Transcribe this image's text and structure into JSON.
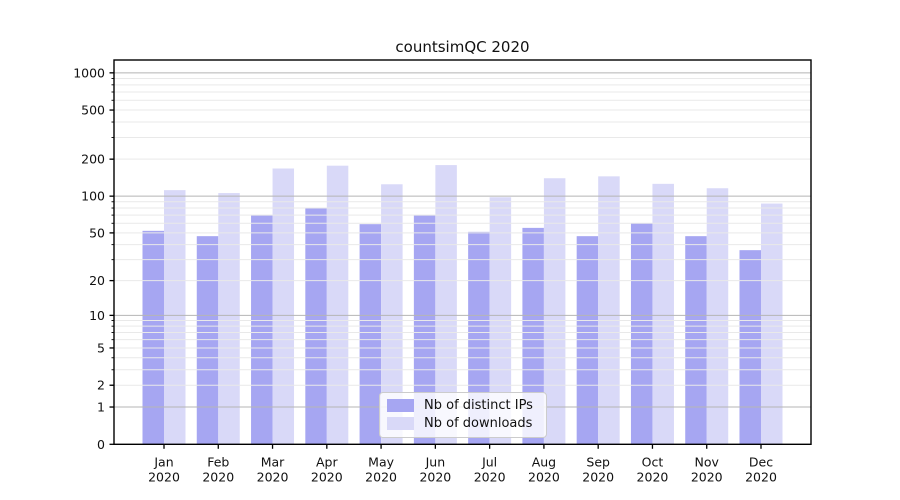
{
  "figure": {
    "title": "countsimQC 2020",
    "background": "#ffffff"
  },
  "chart_data": {
    "type": "bar",
    "title": "countsimQC 2020",
    "categories": [
      "Jan",
      "Feb",
      "Mar",
      "Apr",
      "May",
      "Jun",
      "Jul",
      "Aug",
      "Sep",
      "Oct",
      "Nov",
      "Dec"
    ],
    "category_year": "2020",
    "series": [
      {
        "name": "Nb of distinct IPs",
        "color": "#a6a6f2",
        "values": [
          52,
          47,
          70,
          80,
          59,
          70,
          51,
          55,
          47,
          60,
          47,
          36
        ]
      },
      {
        "name": "Nb of downloads",
        "color": "#d9d9f8",
        "values": [
          112,
          106,
          168,
          177,
          125,
          179,
          98,
          140,
          145,
          126,
          116,
          87
        ]
      }
    ],
    "xlabel": "",
    "ylabel": "",
    "yscale": "log1p",
    "ylim": [
      0,
      1270
    ],
    "ytick_labels": [
      "1000",
      "500",
      "200",
      "100",
      "50",
      "20",
      "10",
      "5",
      "2",
      "1",
      "0"
    ],
    "yticks": [
      1000,
      500,
      200,
      100,
      50,
      20,
      10,
      5,
      2,
      1,
      0
    ],
    "grid": true,
    "grid_major_values": [
      1,
      10,
      100,
      1000
    ],
    "grid_minor_values": [
      2,
      3,
      4,
      5,
      6,
      7,
      8,
      9,
      20,
      30,
      40,
      50,
      60,
      70,
      80,
      90,
      200,
      300,
      400,
      500,
      600,
      700,
      800,
      900
    ],
    "legend_position": "lower center",
    "colors": {
      "grid_major": "#b5b5b5",
      "grid_minor": "#e9e9e9",
      "axis_frame": "#000000",
      "tick_text": "#111111"
    }
  }
}
